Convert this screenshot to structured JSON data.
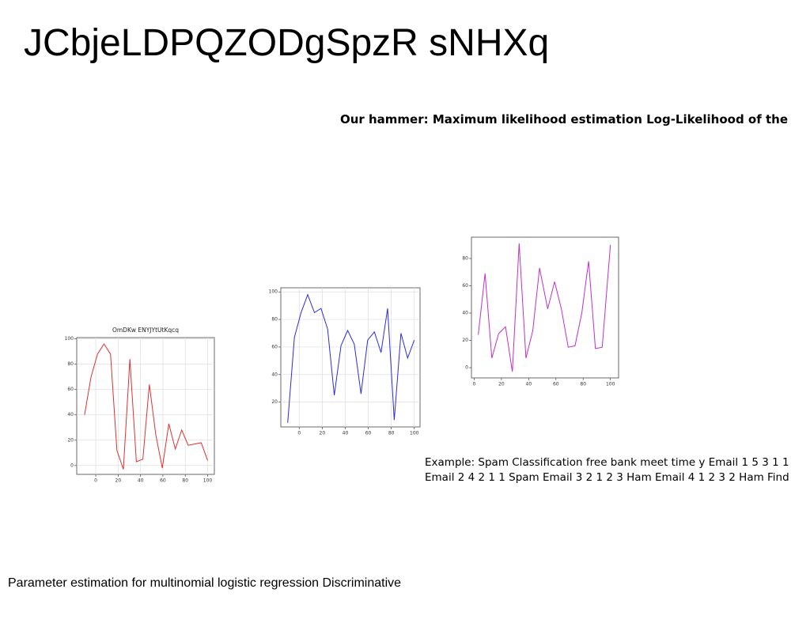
{
  "title": "JCbjeLDPQZODgSpzR sNHXq",
  "heading": "Our hammer: Maximum likelihood estimation Log-Likelihood of the",
  "example": {
    "lines": [
      "Example: Spam Classification free bank meet time y Email 1 5 3 1 1",
      "Email 2 4 2 1 1 Spam Email 3 2 1 2 3 Ham Email 4 1 2 3 2 Ham Find"
    ]
  },
  "footer": "Parameter estimation for multinomial logistic regression Discriminative",
  "chart_data": [
    {
      "type": "line",
      "title": "OmDKw ENYJYtUtKqcq",
      "x": [
        -10,
        -4.2,
        1.6,
        7.4,
        13.2,
        18.9,
        24.7,
        30.5,
        36.3,
        42.1,
        47.9,
        53.7,
        59.5,
        65.3,
        71.1,
        76.8,
        82.6,
        88.4,
        94.2,
        100
      ],
      "series": [
        {
          "color": "#e03030",
          "values": [
            40,
            70,
            88,
            96,
            88,
            12,
            -3,
            84,
            3,
            5,
            64,
            24,
            -2,
            33,
            13,
            28,
            16,
            17,
            18,
            4
          ]
        }
      ],
      "xlim": [
        -17,
        106
      ],
      "ylim": [
        -7,
        101
      ],
      "xticks": [
        0,
        20,
        40,
        60,
        80,
        100
      ],
      "yticks": [
        0,
        20,
        40,
        60,
        80,
        100
      ],
      "grid": true
    },
    {
      "type": "line",
      "x": [
        -10,
        -4.2,
        1.6,
        7.4,
        13.2,
        18.9,
        24.7,
        30.5,
        36.3,
        42.1,
        47.9,
        53.7,
        59.5,
        65.3,
        71.1,
        76.8,
        82.6,
        88.4,
        94.2,
        100
      ],
      "series": [
        {
          "color": "#2b2be0",
          "values": [
            5,
            67,
            85,
            98,
            85,
            88,
            73,
            25,
            61,
            72,
            62,
            26,
            65,
            71,
            56,
            88,
            7,
            70,
            52,
            65
          ]
        }
      ],
      "xlim": [
        -16,
        105
      ],
      "ylim": [
        2,
        103
      ],
      "xticks": [
        0,
        20,
        40,
        60,
        80,
        100
      ],
      "yticks": [
        20,
        40,
        60,
        80,
        100
      ],
      "grid": true
    },
    {
      "type": "line",
      "x": [
        3,
        8,
        13,
        18,
        23,
        28,
        33,
        38,
        43,
        48,
        54,
        59,
        64,
        69,
        74,
        79,
        84,
        89,
        94,
        100
      ],
      "series": [
        {
          "color": "#c030c8",
          "values": [
            24,
            69,
            7,
            25,
            30,
            -3,
            91,
            7,
            27,
            73,
            43,
            63,
            43,
            15,
            16,
            40,
            78,
            14,
            15,
            90
          ]
        }
      ],
      "xlim": [
        -2,
        106
      ],
      "ylim": [
        -7.5,
        95.6
      ],
      "xticks": [
        0,
        20,
        40,
        60,
        80,
        100
      ],
      "yticks": [
        0,
        20,
        40,
        60,
        80
      ],
      "grid": false
    }
  ]
}
